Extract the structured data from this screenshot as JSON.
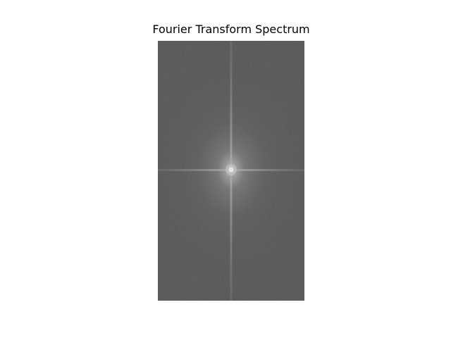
{
  "figure": {
    "title": "Fourier Transform Spectrum"
  },
  "image": {
    "subject": "centered log-magnitude Fourier spectrum",
    "colormap": "grayscale",
    "axes_visible": false,
    "colors": {
      "figure_background": "#ffffff",
      "spectrum_base": "#4f4f4f",
      "center_glow": "#d8d8d8"
    }
  }
}
